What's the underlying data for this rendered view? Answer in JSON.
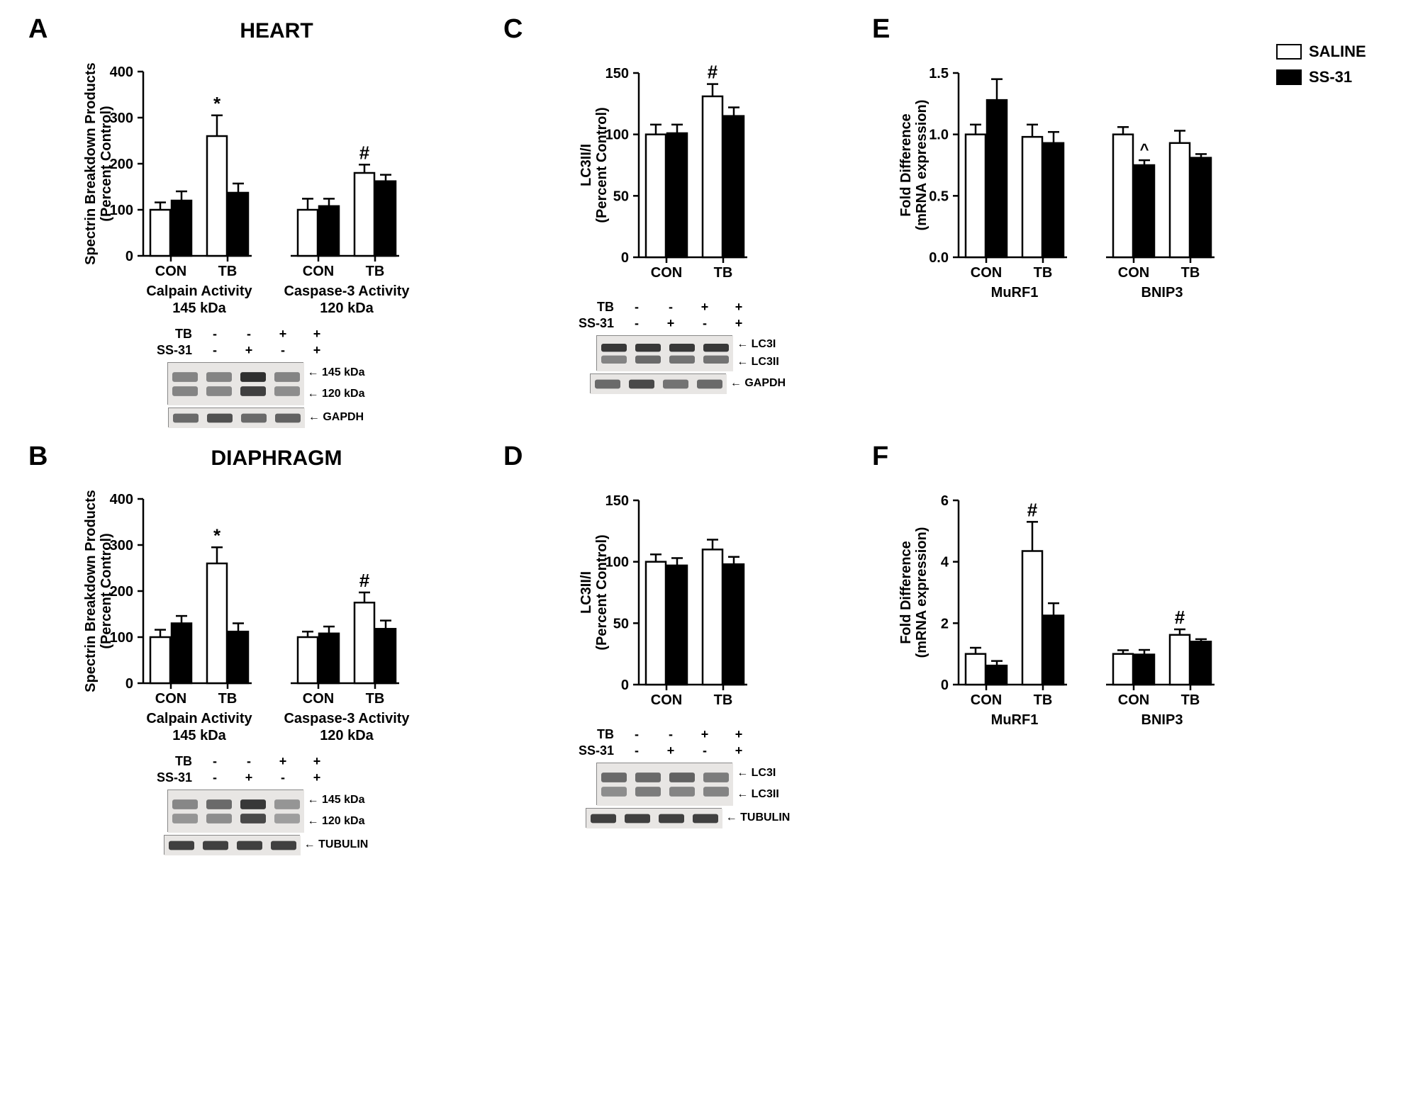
{
  "legend": {
    "saline": "SALINE",
    "ss31": "SS-31"
  },
  "common": {
    "colors": {
      "saline": "#ffffff",
      "ss31": "#000000",
      "axis": "#000000",
      "text": "#000000"
    },
    "stroke_width": 2.5,
    "cat_labels": {
      "con": "CON",
      "tb": "TB"
    }
  },
  "panelA": {
    "label": "A",
    "title": "HEART",
    "ylabel1": "Spectrin Breakdown Products",
    "ylabel2": "(Percent Control)",
    "ylim": [
      0,
      400
    ],
    "ytick_step": 100,
    "groups": [
      {
        "label_top": "Calpain Activity",
        "label_bottom": "145 kDa",
        "bars": [
          {
            "cat": "CON",
            "saline": 100,
            "saline_err": 16,
            "ss31": 120,
            "ss31_err": 20
          },
          {
            "cat": "TB",
            "saline": 260,
            "saline_err": 45,
            "ss31": 137,
            "ss31_err": 20,
            "sig_saline": "*"
          }
        ]
      },
      {
        "label_top": "Caspase-3 Activity",
        "label_bottom": "120 kDa",
        "bars": [
          {
            "cat": "CON",
            "saline": 100,
            "saline_err": 24,
            "ss31": 108,
            "ss31_err": 16
          },
          {
            "cat": "TB",
            "saline": 180,
            "saline_err": 18,
            "ss31": 162,
            "ss31_err": 14,
            "sig_saline": "#"
          }
        ]
      }
    ],
    "blot": {
      "tb": [
        "-",
        "-",
        "+",
        "+"
      ],
      "ss31": [
        "-",
        "+",
        "-",
        "+"
      ],
      "row_tb": "TB",
      "row_ss31": "SS-31",
      "bands": [
        {
          "labels": [
            "145 kDa",
            "120 kDa"
          ],
          "h": 60,
          "lanes": [
            [
              40,
              40
            ],
            [
              40,
              38
            ],
            [
              90,
              80
            ],
            [
              40,
              35
            ]
          ]
        },
        {
          "labels": [
            "GAPDH"
          ],
          "h": 28,
          "lanes": [
            [
              55
            ],
            [
              70
            ],
            [
              55
            ],
            [
              60
            ]
          ]
        }
      ]
    }
  },
  "panelB": {
    "label": "B",
    "title": "DIAPHRAGM",
    "ylabel1": "Spectrin Breakdown Products",
    "ylabel2": "(Percent Control)",
    "ylim": [
      0,
      400
    ],
    "ytick_step": 100,
    "groups": [
      {
        "label_top": "Calpain Activity",
        "label_bottom": "145 kDa",
        "bars": [
          {
            "cat": "CON",
            "saline": 100,
            "saline_err": 16,
            "ss31": 130,
            "ss31_err": 16
          },
          {
            "cat": "TB",
            "saline": 260,
            "saline_err": 35,
            "ss31": 112,
            "ss31_err": 18,
            "sig_saline": "*"
          }
        ]
      },
      {
        "label_top": "Caspase-3 Activity",
        "label_bottom": "120 kDa",
        "bars": [
          {
            "cat": "CON",
            "saline": 100,
            "saline_err": 12,
            "ss31": 108,
            "ss31_err": 15
          },
          {
            "cat": "TB",
            "saline": 175,
            "saline_err": 22,
            "ss31": 118,
            "ss31_err": 18,
            "sig_saline": "#"
          }
        ]
      }
    ],
    "blot": {
      "tb": [
        "-",
        "-",
        "+",
        "+"
      ],
      "ss31": [
        "-",
        "+",
        "-",
        "+"
      ],
      "row_tb": "TB",
      "row_ss31": "SS-31",
      "bands": [
        {
          "labels": [
            "145 kDa",
            "120 kDa"
          ],
          "h": 60,
          "lanes": [
            [
              38,
              30
            ],
            [
              55,
              35
            ],
            [
              85,
              75
            ],
            [
              30,
              25
            ]
          ]
        },
        {
          "labels": [
            "TUBULIN"
          ],
          "h": 28,
          "lanes": [
            [
              80
            ],
            [
              80
            ],
            [
              80
            ],
            [
              80
            ]
          ]
        }
      ]
    }
  },
  "panelC": {
    "label": "C",
    "ylabel1": "LC3II/I",
    "ylabel2": "(Percent Control)",
    "ylim": [
      0,
      150
    ],
    "ytick_step": 50,
    "groups": [
      {
        "bars": [
          {
            "cat": "CON",
            "saline": 100,
            "saline_err": 8,
            "ss31": 101,
            "ss31_err": 7
          },
          {
            "cat": "TB",
            "saline": 131,
            "saline_err": 10,
            "ss31": 115,
            "ss31_err": 7,
            "sig_saline": "#"
          }
        ]
      }
    ],
    "blot": {
      "tb": [
        "-",
        "-",
        "+",
        "+"
      ],
      "ss31": [
        "-",
        "+",
        "-",
        "+"
      ],
      "row_tb": "TB",
      "row_ss31": "SS-31",
      "bands": [
        {
          "labels": [
            "LC3I",
            "LC3II"
          ],
          "h": 50,
          "lanes": [
            [
              85,
              40
            ],
            [
              85,
              55
            ],
            [
              85,
              50
            ],
            [
              85,
              50
            ]
          ]
        },
        {
          "labels": [
            "GAPDH"
          ],
          "h": 28,
          "lanes": [
            [
              55
            ],
            [
              75
            ],
            [
              50
            ],
            [
              55
            ]
          ]
        }
      ]
    }
  },
  "panelD": {
    "label": "D",
    "ylabel1": "LC3II/I",
    "ylabel2": "(Percent Control)",
    "ylim": [
      0,
      150
    ],
    "ytick_step": 50,
    "groups": [
      {
        "bars": [
          {
            "cat": "CON",
            "saline": 100,
            "saline_err": 6,
            "ss31": 97,
            "ss31_err": 6
          },
          {
            "cat": "TB",
            "saline": 110,
            "saline_err": 8,
            "ss31": 98,
            "ss31_err": 6
          }
        ]
      }
    ],
    "blot": {
      "tb": [
        "-",
        "-",
        "+",
        "+"
      ],
      "ss31": [
        "-",
        "+",
        "-",
        "+"
      ],
      "row_tb": "TB",
      "row_ss31": "SS-31",
      "bands": [
        {
          "labels": [
            "LC3I",
            "LC3II"
          ],
          "h": 60,
          "lanes": [
            [
              55,
              35
            ],
            [
              55,
              45
            ],
            [
              60,
              40
            ],
            [
              45,
              40
            ]
          ]
        },
        {
          "labels": [
            "TUBULIN"
          ],
          "h": 28,
          "lanes": [
            [
              80
            ],
            [
              80
            ],
            [
              80
            ],
            [
              80
            ]
          ]
        }
      ]
    }
  },
  "panelE": {
    "label": "E",
    "ylabel1": "Fold Difference",
    "ylabel2": "(mRNA expression)",
    "ylim": [
      0.0,
      1.5
    ],
    "ytick_step": 0.5,
    "decimals": 1,
    "groups": [
      {
        "label_top": "MuRF1",
        "bars": [
          {
            "cat": "CON",
            "saline": 1.0,
            "saline_err": 0.08,
            "ss31": 1.28,
            "ss31_err": 0.17
          },
          {
            "cat": "TB",
            "saline": 0.98,
            "saline_err": 0.1,
            "ss31": 0.93,
            "ss31_err": 0.09
          }
        ]
      },
      {
        "label_top": "BNIP3",
        "bars": [
          {
            "cat": "CON",
            "saline": 1.0,
            "saline_err": 0.06,
            "ss31": 0.75,
            "ss31_err": 0.04,
            "sig_ss31": "^"
          },
          {
            "cat": "TB",
            "saline": 0.93,
            "saline_err": 0.1,
            "ss31": 0.81,
            "ss31_err": 0.03
          }
        ]
      }
    ]
  },
  "panelF": {
    "label": "F",
    "ylabel1": "Fold Difference",
    "ylabel2": "(mRNA expression)",
    "ylim": [
      0,
      6
    ],
    "ytick_step": 2,
    "groups": [
      {
        "label_top": "MuRF1",
        "bars": [
          {
            "cat": "CON",
            "saline": 1.0,
            "saline_err": 0.2,
            "ss31": 0.62,
            "ss31_err": 0.15
          },
          {
            "cat": "TB",
            "saline": 4.35,
            "saline_err": 0.95,
            "ss31": 2.25,
            "ss31_err": 0.4,
            "sig_saline": "#"
          }
        ]
      },
      {
        "label_top": "BNIP3",
        "bars": [
          {
            "cat": "CON",
            "saline": 1.0,
            "saline_err": 0.12,
            "ss31": 0.98,
            "ss31_err": 0.15
          },
          {
            "cat": "TB",
            "saline": 1.62,
            "saline_err": 0.18,
            "ss31": 1.4,
            "ss31_err": 0.08,
            "sig_saline": "#"
          }
        ]
      }
    ]
  }
}
